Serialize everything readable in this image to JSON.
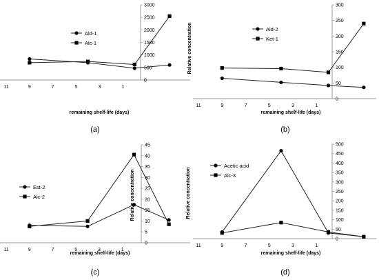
{
  "figure": {
    "panel_labels": [
      "(a)",
      "(b)",
      "(c)",
      "(d)"
    ]
  },
  "chart_data": [
    {
      "type": "line",
      "panel": "(a)",
      "xlabel": "remaining shelf-life (days)",
      "ylabel": "",
      "x_ticks": [
        "11",
        "9",
        "7",
        "5",
        "3",
        "1"
      ],
      "y_ticks": [
        "0",
        "500",
        "1000",
        "1500",
        "2000",
        "2500",
        "3000"
      ],
      "xlim": [
        11,
        -4
      ],
      "ylim": [
        0,
        3000
      ],
      "legend_position": "top-left",
      "series": [
        {
          "name": "Ald-1",
          "marker": "circle",
          "x": [
            9,
            4,
            0,
            -3
          ],
          "y": [
            840,
            690,
            470,
            600
          ]
        },
        {
          "name": "Alc-1",
          "marker": "square",
          "x": [
            9,
            4,
            0,
            -3
          ],
          "y": [
            690,
            740,
            620,
            2550
          ]
        }
      ]
    },
    {
      "type": "line",
      "panel": "(b)",
      "xlabel": "remaining shelf-life (days)",
      "ylabel": "Relative concentration",
      "x_ticks": [
        "11",
        "9",
        "7",
        "5",
        "3",
        "1"
      ],
      "y_ticks": [
        "0",
        "50",
        "100",
        "150",
        "200",
        "250",
        "300"
      ],
      "xlim": [
        11,
        -4
      ],
      "ylim": [
        0,
        300
      ],
      "legend_position": "top-left",
      "series": [
        {
          "name": "Ald-2",
          "marker": "circle",
          "x": [
            9,
            4,
            0,
            -3
          ],
          "y": [
            65,
            52,
            42,
            36
          ]
        },
        {
          "name": "Ket-1",
          "marker": "square",
          "x": [
            9,
            4,
            0,
            -3
          ],
          "y": [
            98,
            96,
            84,
            240
          ]
        }
      ]
    },
    {
      "type": "line",
      "panel": "(c)",
      "xlabel": "remaining shelf-life (days)",
      "ylabel": "Relative concentration",
      "x_ticks": [
        "11",
        "9",
        "7",
        "5",
        "3",
        "1"
      ],
      "y_ticks": [
        "0",
        "5",
        "10",
        "15",
        "20",
        "25",
        "30",
        "35",
        "40",
        "45"
      ],
      "xlim": [
        11,
        -4
      ],
      "ylim": [
        0,
        45
      ],
      "legend_position": "middle-left",
      "series": [
        {
          "name": "Est-2",
          "marker": "circle",
          "x": [
            9,
            4,
            0,
            -3
          ],
          "y": [
            8,
            7.5,
            17.5,
            10.5
          ]
        },
        {
          "name": "Alc-2",
          "marker": "square",
          "x": [
            9,
            4,
            0,
            -3
          ],
          "y": [
            7.5,
            10,
            40.5,
            8.5
          ]
        }
      ]
    },
    {
      "type": "line",
      "panel": "(d)",
      "xlabel": "remaining shelf-life (days)",
      "ylabel": "Relative concentration",
      "x_ticks": [
        "11",
        "9",
        "7",
        "5",
        "3",
        "1"
      ],
      "y_ticks": [
        "0",
        "50",
        "100",
        "150",
        "200",
        "250",
        "300",
        "350",
        "400",
        "450",
        "500"
      ],
      "xlim": [
        11,
        -4
      ],
      "ylim": [
        0,
        500
      ],
      "legend_position": "top-left",
      "series": [
        {
          "name": "Acetic acid",
          "marker": "circle",
          "x": [
            9,
            4,
            0,
            -3
          ],
          "y": [
            35,
            465,
            30,
            10
          ]
        },
        {
          "name": "Alc-3",
          "marker": "square",
          "x": [
            9,
            4,
            0,
            -3
          ],
          "y": [
            30,
            85,
            35,
            10
          ]
        }
      ]
    }
  ]
}
